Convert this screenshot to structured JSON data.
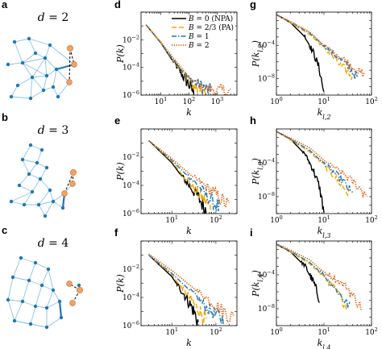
{
  "figure": {
    "left_panels": [
      {
        "label": "a",
        "title": "d = 2"
      },
      {
        "label": "b",
        "title": "d = 3"
      },
      {
        "label": "c",
        "title": "d = 4"
      }
    ],
    "network_colors": {
      "node": "#1f77b4",
      "edge": "#8cc3e8",
      "highlight_edge": "#1f77b4",
      "new_node": "#f4a261",
      "dashed": "#000000"
    }
  },
  "chart_data": [
    {
      "panel": "d",
      "type": "line",
      "xscale": "log",
      "yscale": "log",
      "xlabel": "k",
      "ylabel": "P(k)",
      "xlim": [
        2,
        5000
      ],
      "ylim": [
        1e-06,
        1
      ],
      "xticks": [
        10,
        100,
        1000
      ],
      "xtick_labels": [
        "10^1",
        "10^2",
        "10^3"
      ],
      "yticks": [
        1e-06,
        0.0001,
        0.01
      ],
      "ytick_labels": [
        "10^-6",
        "10^-4",
        "10^-2"
      ],
      "legend": {
        "placement": "top-right",
        "entries": [
          "B = 0 (NPA)",
          "B = 2/3 (PA)",
          "B = 1",
          "B = 2"
        ]
      },
      "series": [
        {
          "name": "B = 0 (NPA)",
          "color": "#000000",
          "dash": "solid",
          "x": [
            3,
            10,
            30,
            60,
            100,
            150
          ],
          "y": [
            0.12,
            0.006,
            0.0002,
            2e-05,
            4e-06,
            1e-06
          ]
        },
        {
          "name": "B = 2/3 (PA)",
          "color": "#f0a500",
          "dash": "long",
          "x": [
            3,
            10,
            30,
            100,
            200,
            400
          ],
          "y": [
            0.12,
            0.006,
            0.00025,
            8e-06,
            2e-06,
            1e-06
          ]
        },
        {
          "name": "B = 1",
          "color": "#1f77b4",
          "dash": "dashdot",
          "x": [
            3,
            10,
            30,
            100,
            300,
            600
          ],
          "y": [
            0.12,
            0.006,
            0.0003,
            1.2e-05,
            3e-06,
            1e-06
          ]
        },
        {
          "name": "B = 2",
          "color": "#d95f0e",
          "dash": "dotted",
          "x": [
            3,
            10,
            30,
            100,
            300,
            1000,
            3000
          ],
          "y": [
            0.12,
            0.007,
            0.0004,
            2e-05,
            3e-06,
            1.5e-06,
            1e-06
          ]
        }
      ]
    },
    {
      "panel": "e",
      "type": "line",
      "xscale": "log",
      "yscale": "log",
      "xlabel": "k",
      "ylabel": "P(k)",
      "xlim": [
        2,
        300
      ],
      "ylim": [
        1e-06,
        1
      ],
      "xticks": [
        10,
        100
      ],
      "xtick_labels": [
        "10^1",
        "10^2"
      ],
      "yticks": [
        1e-06,
        0.0001,
        0.01
      ],
      "ytick_labels": [
        "10^-6",
        "10^-4",
        "10^-2"
      ],
      "series": [
        {
          "name": "B = 0 (NPA)",
          "color": "#000000",
          "dash": "solid",
          "x": [
            3,
            10,
            20,
            40,
            60
          ],
          "y": [
            0.15,
            0.004,
            0.0002,
            1e-05,
            1e-06
          ]
        },
        {
          "name": "B = 2/3 (PA)",
          "color": "#f0a500",
          "dash": "long",
          "x": [
            3,
            10,
            20,
            40,
            80
          ],
          "y": [
            0.15,
            0.005,
            0.0003,
            2e-05,
            1.5e-06
          ]
        },
        {
          "name": "B = 1",
          "color": "#1f77b4",
          "dash": "dashdot",
          "x": [
            3,
            10,
            30,
            60,
            120
          ],
          "y": [
            0.15,
            0.006,
            0.0002,
            1.5e-05,
            1.5e-06
          ]
        },
        {
          "name": "B = 2",
          "color": "#d95f0e",
          "dash": "dotted",
          "x": [
            3,
            10,
            30,
            80,
            200
          ],
          "y": [
            0.15,
            0.008,
            0.0004,
            3e-05,
            2e-06
          ]
        }
      ]
    },
    {
      "panel": "f",
      "type": "line",
      "xscale": "log",
      "yscale": "log",
      "xlabel": "k",
      "ylabel": "P(k)",
      "xlim": [
        2,
        300
      ],
      "ylim": [
        1e-06,
        1
      ],
      "xticks": [
        10,
        100
      ],
      "xtick_labels": [
        "10^1",
        "10^2"
      ],
      "yticks": [
        1e-06,
        0.0001,
        0.01
      ],
      "ytick_labels": [
        "10^-6",
        "10^-4",
        "10^-2"
      ],
      "series": [
        {
          "name": "B = 0 (NPA)",
          "color": "#000000",
          "dash": "solid",
          "x": [
            3,
            10,
            20,
            30,
            40
          ],
          "y": [
            0.1,
            0.003,
            0.0001,
            1e-05,
            1e-06
          ]
        },
        {
          "name": "B = 2/3 (PA)",
          "color": "#f0a500",
          "dash": "long",
          "x": [
            3,
            10,
            20,
            40,
            60
          ],
          "y": [
            0.1,
            0.004,
            0.0002,
            1e-05,
            1.5e-06
          ]
        },
        {
          "name": "B = 1",
          "color": "#1f77b4",
          "dash": "dashdot",
          "x": [
            3,
            10,
            30,
            60,
            150
          ],
          "y": [
            0.1,
            0.005,
            0.0002,
            1.5e-05,
            1.5e-06
          ]
        },
        {
          "name": "B = 2",
          "color": "#d95f0e",
          "dash": "dotted",
          "x": [
            3,
            10,
            30,
            100,
            250
          ],
          "y": [
            0.12,
            0.008,
            0.0005,
            2e-05,
            2e-06
          ]
        }
      ]
    },
    {
      "panel": "g",
      "type": "line",
      "xscale": "log",
      "yscale": "log",
      "xlabel": "k_{l,2}",
      "ylabel": "P(k_{l,2})",
      "xlim": [
        1,
        100
      ],
      "ylim": [
        1e-10,
        1
      ],
      "xticks": [
        1,
        10,
        100
      ],
      "xtick_labels": [
        "10^0",
        "10^1",
        "10^2"
      ],
      "yticks": [
        1e-08,
        0.0001
      ],
      "ytick_labels": [
        "10^-8",
        "10^-4"
      ],
      "series": [
        {
          "name": "B = 0 (NPA)",
          "color": "#000000",
          "dash": "solid",
          "x": [
            1,
            2,
            4,
            6,
            8,
            10
          ],
          "y": [
            0.5,
            0.05,
            0.001,
            1e-05,
            1e-07,
            1e-10
          ]
        },
        {
          "name": "B = 2/3 (PA)",
          "color": "#f0a500",
          "dash": "long",
          "x": [
            1,
            2,
            5,
            10,
            20,
            40
          ],
          "y": [
            0.5,
            0.05,
            0.002,
            5e-05,
            5e-07,
            1e-08
          ]
        },
        {
          "name": "B = 1",
          "color": "#1f77b4",
          "dash": "dashdot",
          "x": [
            1,
            2,
            5,
            10,
            30,
            50
          ],
          "y": [
            0.5,
            0.06,
            0.003,
            8e-05,
            3e-07,
            1e-08
          ]
        },
        {
          "name": "B = 2",
          "color": "#d95f0e",
          "dash": "dotted",
          "x": [
            1,
            2,
            5,
            10,
            30,
            70
          ],
          "y": [
            0.5,
            0.07,
            0.004,
            0.0001,
            8e-07,
            1e-08
          ]
        }
      ]
    },
    {
      "panel": "h",
      "type": "line",
      "xscale": "log",
      "yscale": "log",
      "xlabel": "k_{l,3}",
      "ylabel": "P(k_{l,3})",
      "xlim": [
        1,
        100
      ],
      "ylim": [
        1e-10,
        1
      ],
      "xticks": [
        1,
        10,
        100
      ],
      "xtick_labels": [
        "10^0",
        "10^1",
        "10^2"
      ],
      "yticks": [
        1e-08,
        0.0001
      ],
      "ytick_labels": [
        "10^-8",
        "10^-4"
      ],
      "series": [
        {
          "name": "B = 0 (NPA)",
          "color": "#000000",
          "dash": "solid",
          "x": [
            1,
            2,
            4,
            6,
            8,
            10
          ],
          "y": [
            0.5,
            0.06,
            0.001,
            1e-05,
            1e-07,
            1e-10
          ]
        },
        {
          "name": "B = 2/3 (PA)",
          "color": "#f0a500",
          "dash": "long",
          "x": [
            1,
            2,
            5,
            10,
            20,
            35
          ],
          "y": [
            0.5,
            0.05,
            0.002,
            5e-05,
            5e-07,
            1e-08
          ]
        },
        {
          "name": "B = 1",
          "color": "#1f77b4",
          "dash": "dashdot",
          "x": [
            1,
            2,
            5,
            10,
            25,
            40
          ],
          "y": [
            0.5,
            0.06,
            0.003,
            8e-05,
            5e-07,
            1e-08
          ]
        },
        {
          "name": "B = 2",
          "color": "#d95f0e",
          "dash": "dotted",
          "x": [
            1,
            2,
            5,
            10,
            30,
            80
          ],
          "y": [
            0.5,
            0.08,
            0.006,
            0.0002,
            2e-06,
            1e-08
          ]
        }
      ]
    },
    {
      "panel": "i",
      "type": "line",
      "xscale": "log",
      "yscale": "log",
      "xlabel": "k_{l,4}",
      "ylabel": "P(k_{l,4})",
      "xlim": [
        1,
        100
      ],
      "ylim": [
        1e-10,
        1
      ],
      "xticks": [
        1,
        10,
        100
      ],
      "xtick_labels": [
        "10^0",
        "10^1",
        "10^2"
      ],
      "yticks": [
        1e-08,
        0.0001
      ],
      "ytick_labels": [
        "10^-8",
        "10^-4"
      ],
      "series": [
        {
          "name": "B = 0 (NPA)",
          "color": "#000000",
          "dash": "solid",
          "x": [
            1,
            2,
            4,
            6,
            8
          ],
          "y": [
            0.4,
            0.05,
            0.001,
            1e-05,
            1e-07
          ]
        },
        {
          "name": "B = 2/3 (PA)",
          "color": "#f0a500",
          "dash": "long",
          "x": [
            1,
            2,
            5,
            10,
            20,
            30
          ],
          "y": [
            0.4,
            0.05,
            0.002,
            5e-05,
            5e-07,
            1e-08
          ]
        },
        {
          "name": "B = 1",
          "color": "#1f77b4",
          "dash": "dashdot",
          "x": [
            1,
            2,
            5,
            10,
            20,
            35
          ],
          "y": [
            0.4,
            0.06,
            0.003,
            8e-05,
            6e-07,
            1e-08
          ]
        },
        {
          "name": "B = 2",
          "color": "#d95f0e",
          "dash": "dotted",
          "x": [
            1,
            2,
            5,
            10,
            30,
            60
          ],
          "y": [
            0.5,
            0.08,
            0.006,
            0.0002,
            3e-06,
            1e-08
          ]
        }
      ]
    }
  ]
}
